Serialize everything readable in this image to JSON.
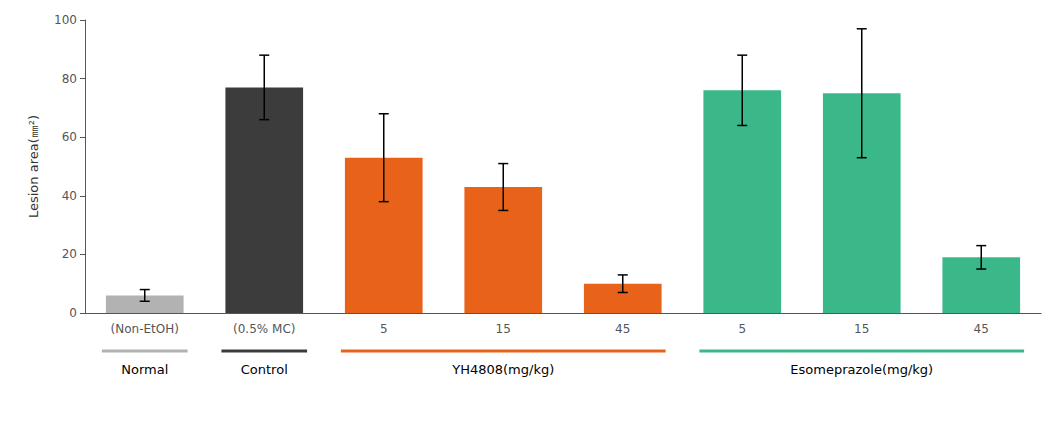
{
  "chart_data": {
    "type": "bar",
    "categories": [
      "(Non-EtOH)",
      "(0.5% MC)",
      "5",
      "15",
      "45",
      "5",
      "15",
      "45"
    ],
    "values": [
      6,
      77,
      53,
      43,
      10,
      76,
      75,
      19
    ],
    "errors": [
      2,
      11,
      15,
      8,
      3,
      12,
      22,
      4
    ],
    "colors": [
      "#b2b2b2",
      "#3c3c3c",
      "#e8621a",
      "#e8621a",
      "#e8621a",
      "#3ab88a",
      "#3ab88a",
      "#3ab88a"
    ],
    "ylabel": "Lesion area(㎜²)",
    "ylim": [
      0,
      100
    ],
    "yticks": [
      0,
      20,
      40,
      60,
      80,
      100
    ],
    "grid": false,
    "groups": [
      {
        "label": "Normal",
        "first": 0,
        "last": 0,
        "color": "#b2b2b2"
      },
      {
        "label": "Control",
        "first": 1,
        "last": 1,
        "color": "#3c3c3c"
      },
      {
        "label": "YH4808(mg/kg)",
        "first": 2,
        "last": 4,
        "color": "#e8621a"
      },
      {
        "label": "Esomeprazole(mg/kg)",
        "first": 5,
        "last": 7,
        "color": "#3ab88a"
      }
    ]
  }
}
